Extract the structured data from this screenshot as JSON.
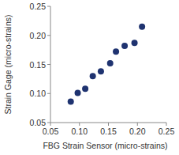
{
  "chart_data": {
    "type": "scatter",
    "x_label": "FBG Strain Sensor (micro-strains)",
    "y_label": "Strain Gage (micro-strains)",
    "x": [
      0.085,
      0.097,
      0.11,
      0.123,
      0.137,
      0.153,
      0.163,
      0.178,
      0.195,
      0.208
    ],
    "values": [
      0.086,
      0.101,
      0.108,
      0.13,
      0.138,
      0.152,
      0.172,
      0.182,
      0.187,
      0.215
    ],
    "color": "#1f3370",
    "marker": "circle",
    "xlim": [
      0.05,
      0.25
    ],
    "xticks": [
      0.05,
      {
        "value": 0.1,
        "label": "0.10"
      },
      0.15,
      {
        "value": 0.2,
        "label": "0.20"
      },
      0.25
    ],
    "ylim": [
      0.05,
      0.25
    ],
    "yticks": [
      0.05,
      {
        "value": 0.1,
        "label": "0.10"
      },
      0.15,
      {
        "value": 0.2,
        "label": "0.20"
      },
      0.25
    ],
    "grid": false
  }
}
